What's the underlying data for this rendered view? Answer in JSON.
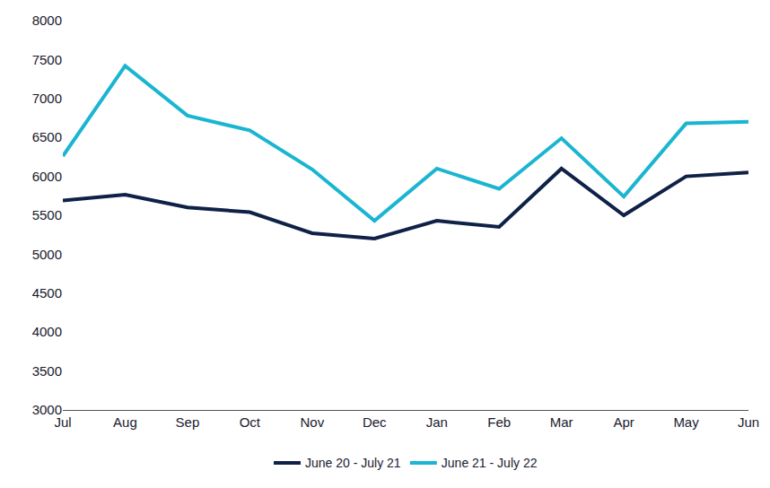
{
  "chart_data": {
    "type": "line",
    "categories": [
      "Jul",
      "Aug",
      "Sep",
      "Oct",
      "Nov",
      "Dec",
      "Jan",
      "Feb",
      "Mar",
      "Apr",
      "May",
      "Jun"
    ],
    "series": [
      {
        "name": "June 20 - July 21",
        "color": "#0f2147",
        "values": [
          5690,
          5765,
          5600,
          5540,
          5270,
          5200,
          5430,
          5350,
          6100,
          5500,
          6000,
          6050
        ]
      },
      {
        "name": "June 21 - July 22",
        "color": "#1ab5d1",
        "values": [
          6260,
          7420,
          6780,
          6590,
          6090,
          5430,
          6100,
          5840,
          6490,
          5740,
          6680,
          6700
        ]
      }
    ],
    "ylim": [
      3000,
      8000
    ],
    "yticks": [
      3000,
      3500,
      4000,
      4500,
      5000,
      5500,
      6000,
      6500,
      7000,
      7500,
      8000
    ],
    "grid": false,
    "legend": "bottom"
  }
}
